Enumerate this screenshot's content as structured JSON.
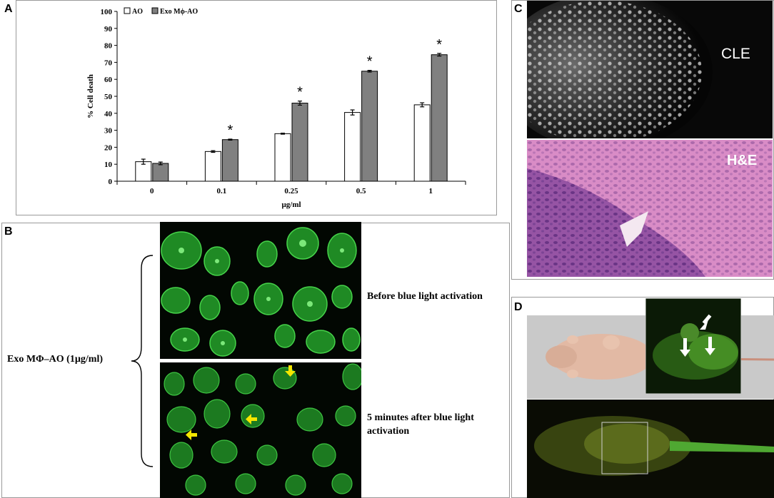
{
  "panels": {
    "A": "A",
    "B": "B",
    "C": "C",
    "D": "D"
  },
  "chart_data": {
    "type": "bar",
    "categories": [
      "0",
      "0.1",
      "0.25",
      "0.5",
      "1"
    ],
    "series": [
      {
        "name": "AO",
        "values": [
          11.5,
          17.5,
          28,
          40.5,
          45
        ],
        "errors": [
          1.5,
          0.5,
          0.3,
          1.5,
          1.2
        ],
        "color": "#ffffff"
      },
      {
        "name": "Exo Mϕ-AO",
        "values": [
          10.5,
          24.5,
          46,
          64.8,
          74.5
        ],
        "errors": [
          0.8,
          0.3,
          1.2,
          0.5,
          0.8
        ],
        "color": "#808080"
      }
    ],
    "significance": [
      "",
      "*",
      "*",
      "*",
      "*"
    ],
    "xlabel": "µg/ml",
    "ylabel": "% Cell death",
    "ylim": [
      0,
      100
    ],
    "yticks": [
      "0",
      "10",
      "20",
      "30",
      "40",
      "50",
      "60",
      "70",
      "80",
      "90",
      "100"
    ],
    "legend_position": "top-left",
    "grid": false
  },
  "panel_b": {
    "group_label": "Exo MΦ–AO (1µg/ml)",
    "top_label": "Before blue light activation",
    "bottom_label_line1": "5 minutes after blue light",
    "bottom_label_line2": "activation"
  },
  "panel_c": {
    "top_label": "CLE",
    "bottom_label": "H&E"
  },
  "colors": {
    "fluorescence": "#2ecc40",
    "arrow": "#f5e600",
    "stain": "#c060b8",
    "background": "#ffffff"
  }
}
